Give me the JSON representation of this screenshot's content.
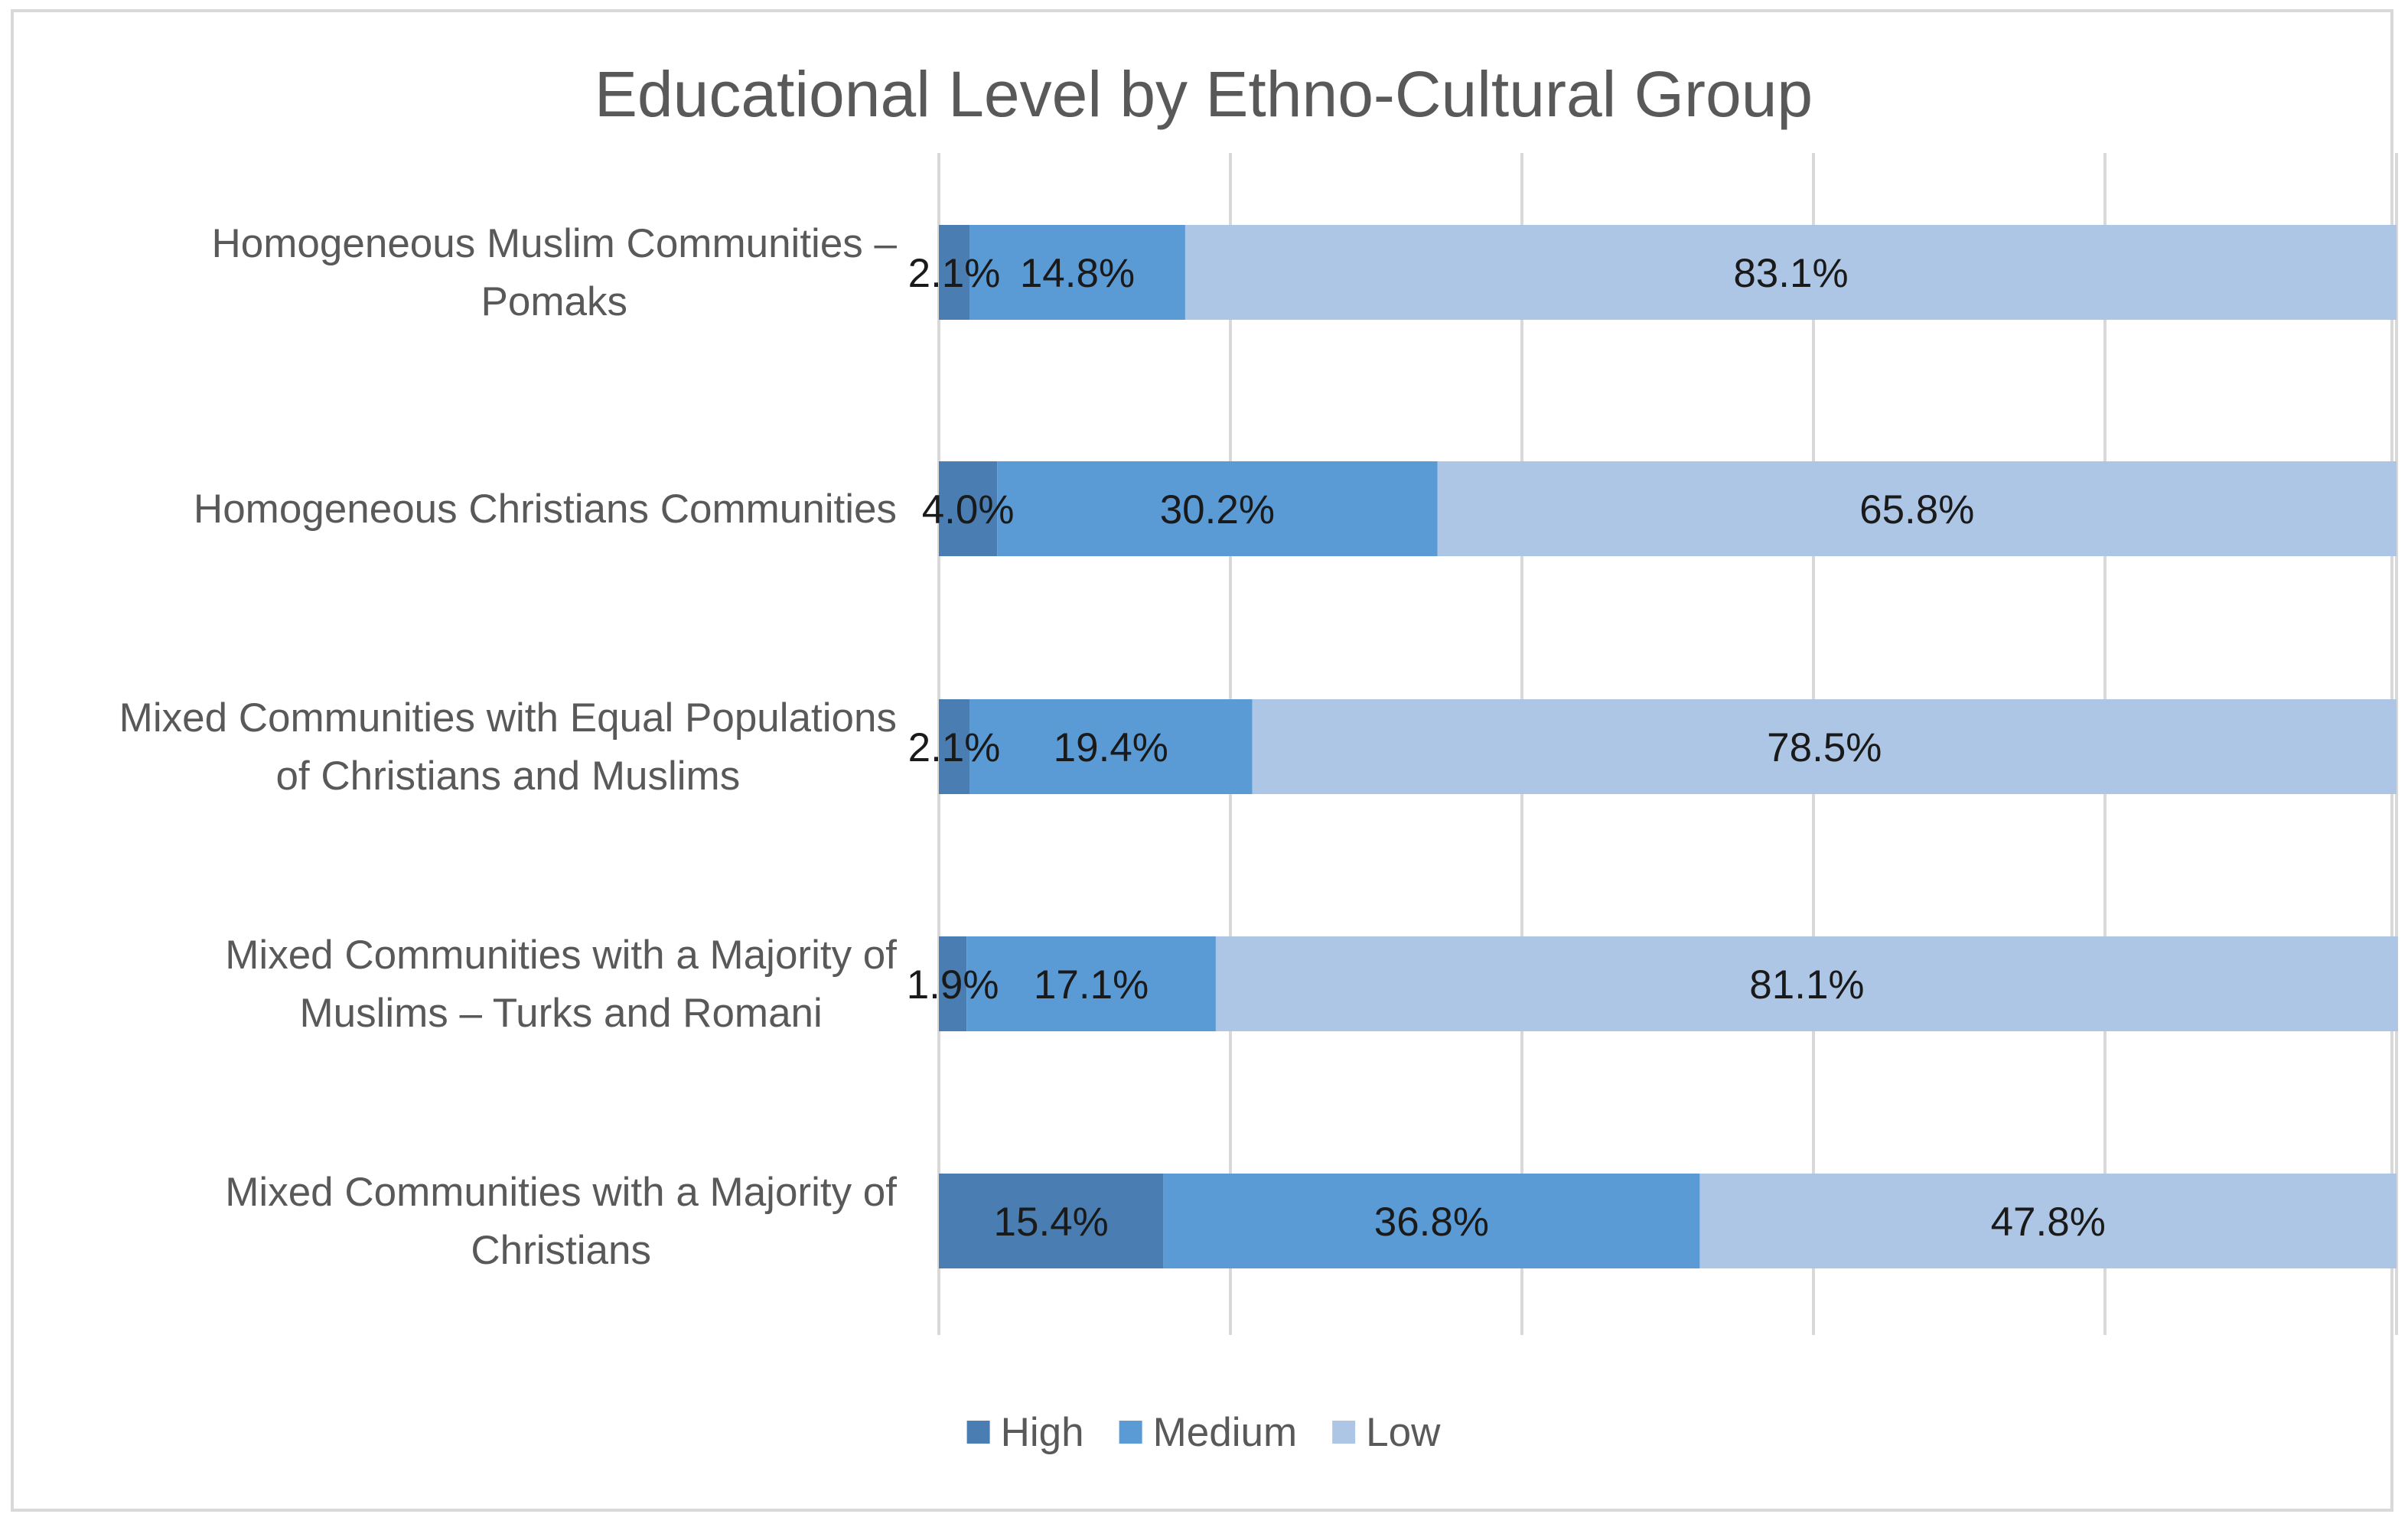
{
  "chart_data": {
    "type": "bar",
    "orientation": "horizontal",
    "stacked": true,
    "title": "Educational Level by Ethno-Cultural Group",
    "xlabel": "",
    "ylabel": "",
    "xlim": [
      0,
      100
    ],
    "grid": true,
    "legend_position": "bottom",
    "categories": [
      [
        "Homogeneous Muslim Communities –",
        "Pomaks"
      ],
      [
        "Homogeneous Christians Communities"
      ],
      [
        "Mixed Communities with Equal Populations",
        "of Christians and Muslims"
      ],
      [
        "Mixed Communities with a Majority of",
        "Muslims – Turks and Romani"
      ],
      [
        "Mixed Communities with a Majority of",
        "Christians"
      ]
    ],
    "series": [
      {
        "name": "High",
        "color": "#4a7eb2",
        "values": [
          2.1,
          4.0,
          2.1,
          1.9,
          15.4
        ],
        "labels": [
          "2.1%",
          "4.0%",
          "2.1%",
          "1.9%",
          "15.4%"
        ]
      },
      {
        "name": "Medium",
        "color": "#5b9bd5",
        "values": [
          14.8,
          30.2,
          19.4,
          17.1,
          36.8
        ],
        "labels": [
          "14.8%",
          "30.2%",
          "19.4%",
          "17.1%",
          "36.8%"
        ]
      },
      {
        "name": "Low",
        "color": "#adc6e6",
        "values": [
          83.1,
          65.8,
          78.5,
          81.1,
          47.8
        ],
        "labels": [
          "83.1%",
          "65.8%",
          "78.5%",
          "81.1%",
          "47.8%"
        ]
      }
    ],
    "colors": {
      "grid": "#d9d9d9",
      "text": "#595959",
      "label_text": "#1a1a1a"
    }
  }
}
